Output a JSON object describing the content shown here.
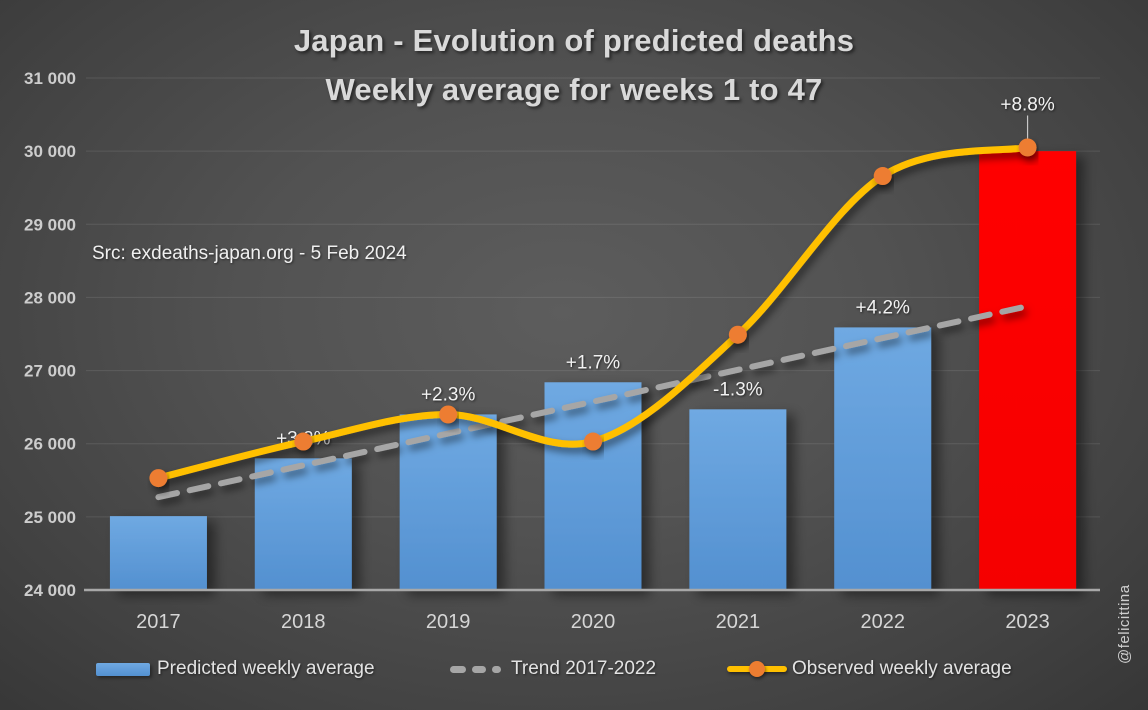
{
  "title": {
    "line1": "Japan - Evolution of predicted deaths",
    "line2": "Weekly average for weeks 1 to 47"
  },
  "source_note": "Src: exdeaths-japan.org - 5 Feb 2024",
  "watermark": "@felicittina",
  "legend": {
    "predicted": "Predicted weekly average",
    "trend": "Trend 2017-2022",
    "observed": "Observed weekly average"
  },
  "colors": {
    "bar_blue_top": "#6FA9E2",
    "bar_blue_bottom": "#5390D0",
    "bar_red": "#FF0000",
    "observed_line": "#FFC000",
    "observed_marker": "#ED7D31",
    "trend_line": "#A6A6A6",
    "grid_line": "rgba(255,255,255,0.10)",
    "axis_line": "#A8A8A8",
    "tick_text": "#CDCDCD",
    "category_text": "#D6D6D6",
    "pct_text": "#F2F2F2"
  },
  "chart_data": {
    "type": "bar",
    "title": "Japan - Evolution of predicted deaths — Weekly average for weeks 1 to 47",
    "categories": [
      "2017",
      "2018",
      "2019",
      "2020",
      "2021",
      "2022",
      "2023"
    ],
    "series": [
      {
        "name": "Predicted weekly average",
        "type": "bar",
        "values": [
          25010,
          25800,
          26400,
          26840,
          26470,
          27590,
          30000
        ],
        "bar_colors": [
          "blue",
          "blue",
          "blue",
          "blue",
          "blue",
          "blue",
          "red"
        ]
      },
      {
        "name": "Observed weekly average",
        "type": "line",
        "values": [
          25530,
          26030,
          26400,
          26030,
          27490,
          29660,
          30050
        ]
      },
      {
        "name": "Trend 2017-2022",
        "type": "trend_line",
        "endpoint_values": [
          25270,
          27880
        ]
      }
    ],
    "pct_change_labels": [
      "",
      "+3.2%",
      "+2.3%",
      "+1.7%",
      "-1.3%",
      "+4.2%",
      "+8.8%"
    ],
    "y_axis": {
      "min": 24000,
      "max": 31000,
      "tick_step": 1000,
      "tick_labels": [
        "24 000",
        "25 000",
        "26 000",
        "27 000",
        "28 000",
        "29 000",
        "30 000",
        "31 000"
      ]
    },
    "grid": true,
    "legend_position": "bottom"
  }
}
